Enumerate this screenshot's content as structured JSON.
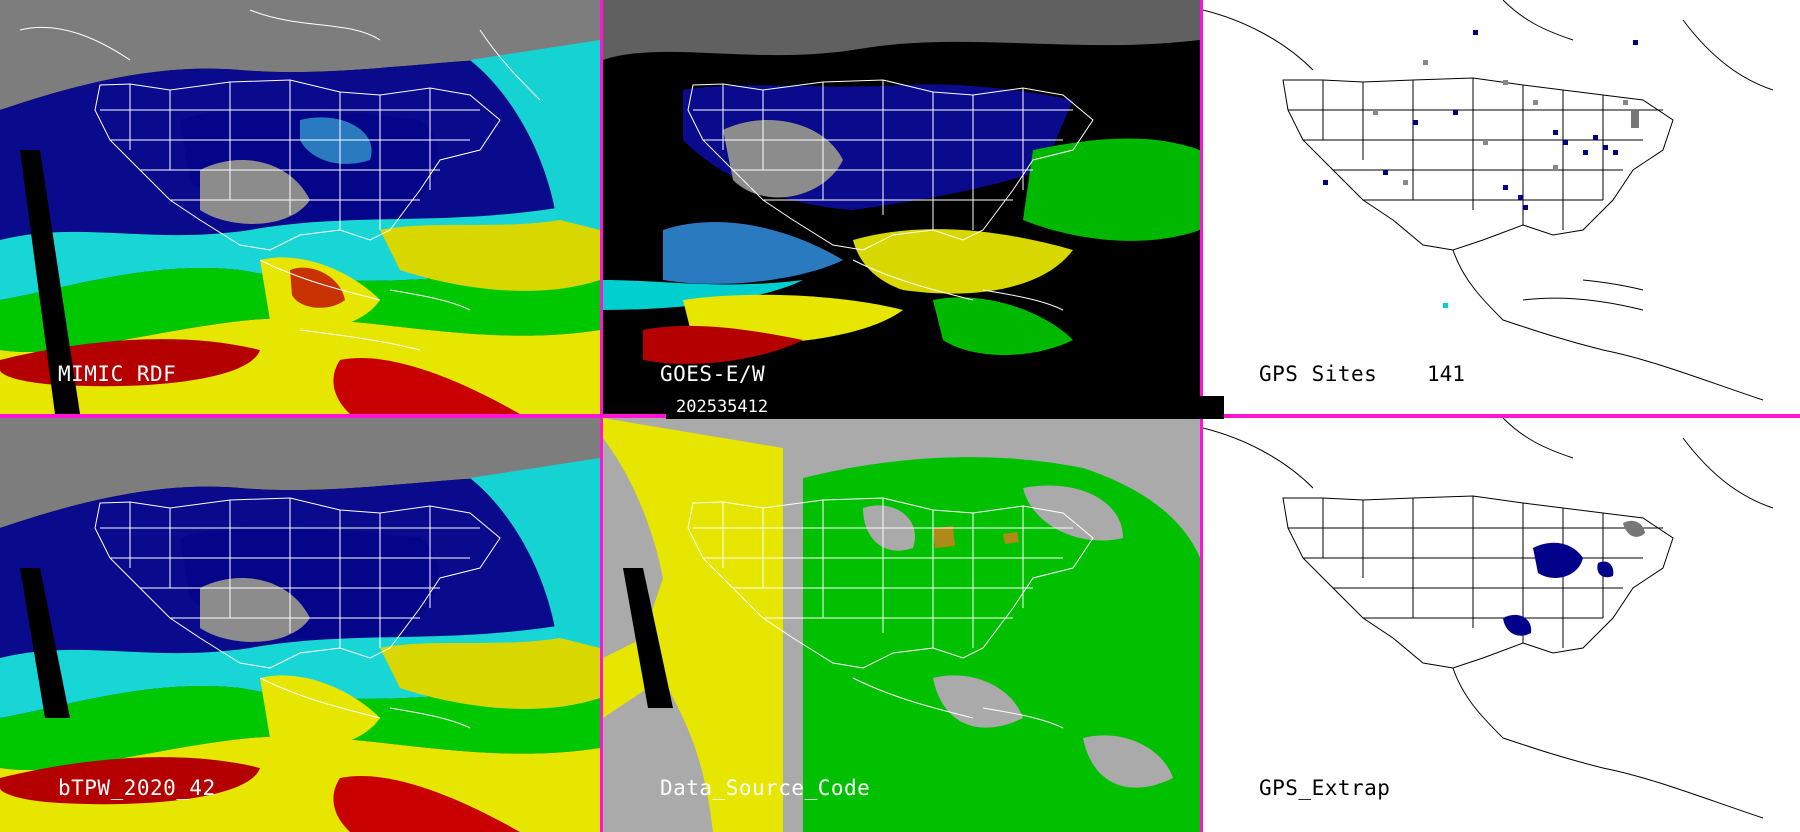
{
  "panels": [
    {
      "label": "MIMIC RDF"
    },
    {
      "label": "GOES-E/W"
    },
    {
      "label": "GPS Sites",
      "count": "141"
    },
    {
      "label": "bTPW_2020_42"
    },
    {
      "label": "Data_Source_Code"
    },
    {
      "label": "GPS_Extrap"
    }
  ],
  "timestamp": "202535412",
  "colors": {
    "divider": "#ff14d6",
    "tpw_scale": [
      "#808080",
      "#00008b",
      "#2850c8",
      "#00e5e5",
      "#00c800",
      "#e6e600",
      "#c80000",
      "#a00000"
    ],
    "source_yellow": "#e6e600",
    "source_green": "#00c000",
    "source_gray": "#aaaaaa",
    "source_brown": "#b08a18"
  }
}
